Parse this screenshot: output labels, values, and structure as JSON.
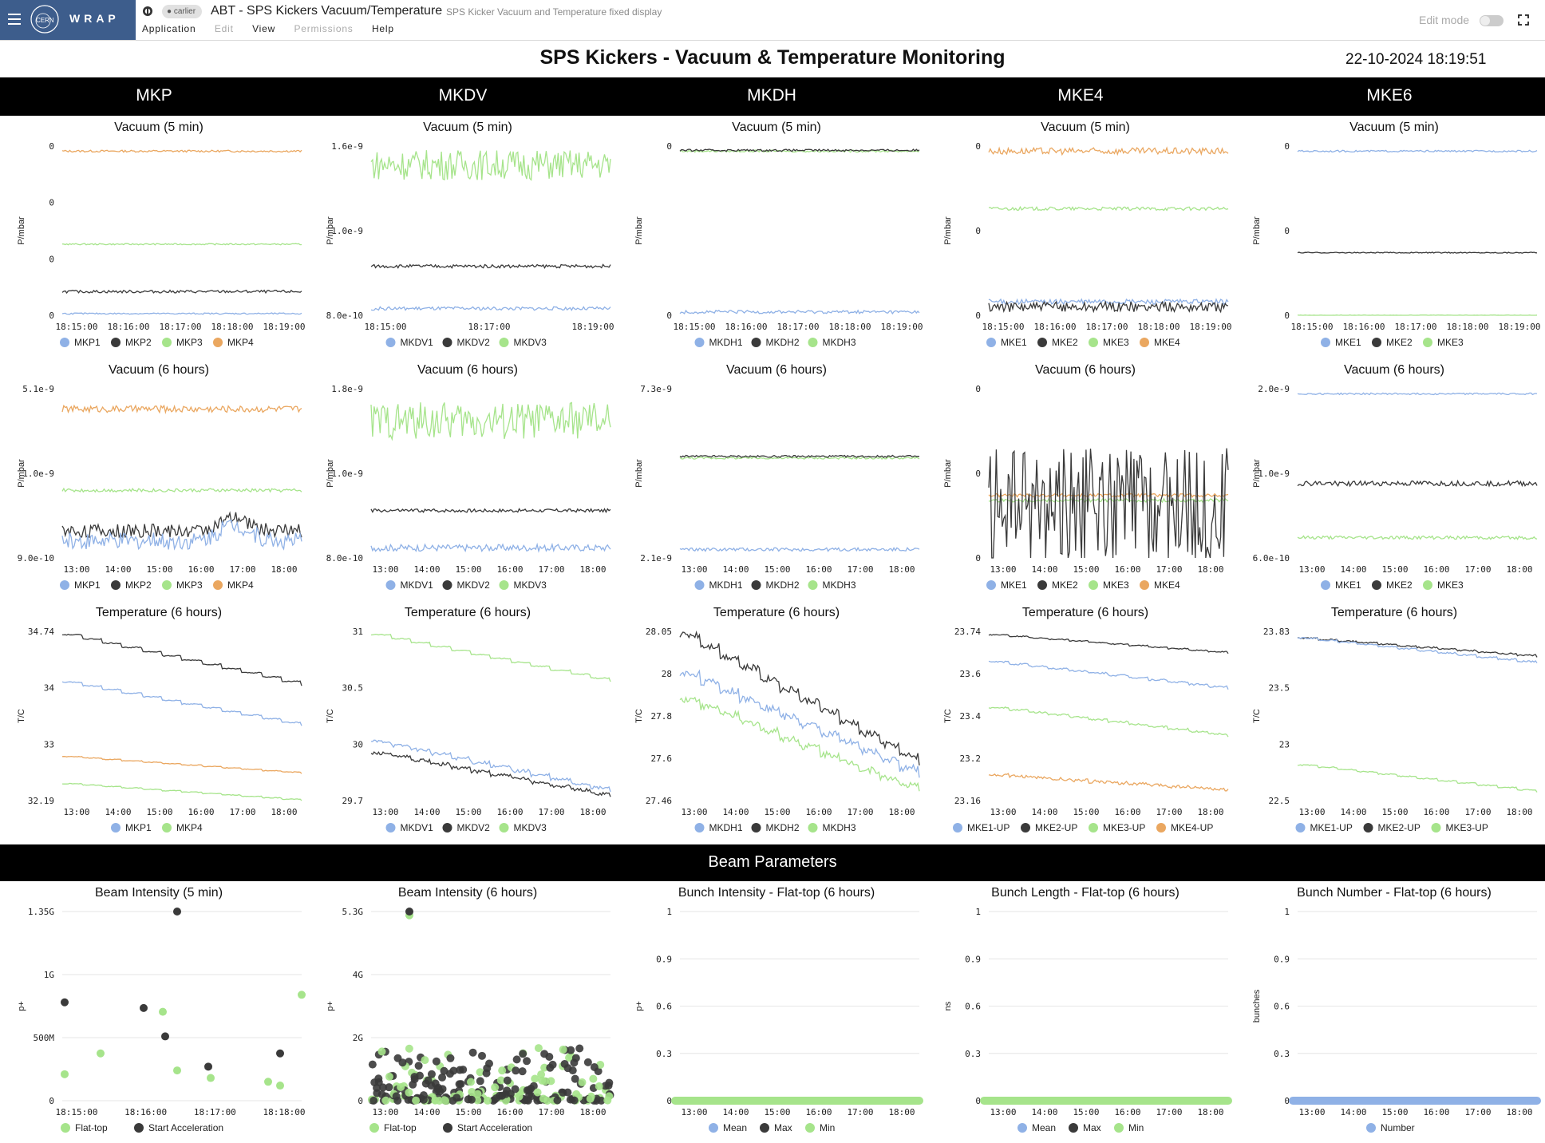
{
  "header": {
    "app_name": "WRAP",
    "user_chip": "carlier",
    "title": "ABT - SPS Kickers Vacuum/Temperature",
    "subtitle": "SPS Kicker Vacuum and Temperature fixed display",
    "menu": [
      {
        "label": "Application",
        "enabled": true
      },
      {
        "label": "Edit",
        "enabled": false
      },
      {
        "label": "View",
        "enabled": true
      },
      {
        "label": "Permissions",
        "enabled": false
      },
      {
        "label": "Help",
        "enabled": true
      }
    ],
    "edit_mode_label": "Edit mode",
    "edit_mode_on": false
  },
  "page": {
    "title": "SPS Kickers - Vacuum & Temperature Monitoring",
    "datetime": "22-10-2024 18:19:51",
    "columns": [
      "MKP",
      "MKDV",
      "MKDH",
      "MKE4",
      "MKE6"
    ],
    "beam_section_title": "Beam Parameters"
  },
  "colors": {
    "blue": "#8fb1e6",
    "black": "#3a3a3a",
    "green": "#a6e48b",
    "orange": "#eaa760"
  },
  "chart_data": [
    {
      "type": "line",
      "title": "Vacuum (5 min)",
      "ylabel": "P/mbar",
      "yticks": [
        "0",
        "0",
        "0",
        "0"
      ],
      "xticks": [
        "18:15:00",
        "18:16:00",
        "18:17:00",
        "18:18:00",
        "18:19:00"
      ],
      "legend": [
        {
          "name": "MKP1",
          "color": "blue"
        },
        {
          "name": "MKP2",
          "color": "black"
        },
        {
          "name": "MKP3",
          "color": "green"
        },
        {
          "name": "MKP4",
          "color": "orange"
        }
      ],
      "series": [
        {
          "color": "orange",
          "level": 0.97,
          "noise": 0.006
        },
        {
          "color": "green",
          "level": 0.42,
          "noise": 0.004
        },
        {
          "color": "black",
          "level": 0.14,
          "noise": 0.008
        },
        {
          "color": "blue",
          "level": 0.01,
          "noise": 0.004
        }
      ]
    },
    {
      "type": "line",
      "title": "Vacuum (5 min)",
      "ylabel": "P/mbar",
      "yticks": [
        "1.6e-9",
        "1.0e-9",
        "8.0e-10"
      ],
      "xticks": [
        "18:15:00",
        "18:17:00",
        "18:19:00"
      ],
      "legend": [
        {
          "name": "MKDV1",
          "color": "blue"
        },
        {
          "name": "MKDV2",
          "color": "black"
        },
        {
          "name": "MKDV3",
          "color": "green"
        }
      ],
      "series": [
        {
          "color": "green",
          "level": 0.89,
          "noise": 0.09
        },
        {
          "color": "black",
          "level": 0.29,
          "noise": 0.01
        },
        {
          "color": "blue",
          "level": 0.04,
          "noise": 0.01
        }
      ]
    },
    {
      "type": "line",
      "title": "Vacuum (5 min)",
      "ylabel": "P/mbar",
      "yticks": [
        "0",
        "0"
      ],
      "xticks": [
        "18:15:00",
        "18:16:00",
        "18:17:00",
        "18:18:00",
        "18:19:00"
      ],
      "legend": [
        {
          "name": "MKDH1",
          "color": "blue"
        },
        {
          "name": "MKDH2",
          "color": "black"
        },
        {
          "name": "MKDH3",
          "color": "green"
        }
      ],
      "series": [
        {
          "color": "green",
          "level": 0.97,
          "noise": 0.006
        },
        {
          "color": "black",
          "level": 0.975,
          "noise": 0.006
        },
        {
          "color": "blue",
          "level": 0.02,
          "noise": 0.01
        }
      ]
    },
    {
      "type": "line",
      "title": "Vacuum (5 min)",
      "ylabel": "P/mbar",
      "yticks": [
        "0",
        "0",
        "0"
      ],
      "xticks": [
        "18:15:00",
        "18:16:00",
        "18:17:00",
        "18:18:00",
        "18:19:00"
      ],
      "legend": [
        {
          "name": "MKE1",
          "color": "blue"
        },
        {
          "name": "MKE2",
          "color": "black"
        },
        {
          "name": "MKE3",
          "color": "green"
        },
        {
          "name": "MKE4",
          "color": "orange"
        }
      ],
      "series": [
        {
          "color": "orange",
          "level": 0.97,
          "noise": 0.02
        },
        {
          "color": "green",
          "level": 0.63,
          "noise": 0.01
        },
        {
          "color": "blue",
          "level": 0.08,
          "noise": 0.015
        },
        {
          "color": "black",
          "level": 0.05,
          "noise": 0.03
        }
      ]
    },
    {
      "type": "line",
      "title": "Vacuum (5 min)",
      "ylabel": "P/mbar",
      "yticks": [
        "0",
        "0",
        "0"
      ],
      "xticks": [
        "18:15:00",
        "18:16:00",
        "18:17:00",
        "18:18:00",
        "18:19:00"
      ],
      "legend": [
        {
          "name": "MKE1",
          "color": "blue"
        },
        {
          "name": "MKE2",
          "color": "black"
        },
        {
          "name": "MKE3",
          "color": "green"
        }
      ],
      "series": [
        {
          "color": "blue",
          "level": 0.97,
          "noise": 0.005
        },
        {
          "color": "black",
          "level": 0.37,
          "noise": 0.003
        },
        {
          "color": "green",
          "level": 0.0,
          "noise": 0.002
        }
      ]
    },
    {
      "type": "line",
      "title": "Vacuum (6 hours)",
      "ylabel": "P/mbar",
      "yticks": [
        "5.1e-9",
        "1.0e-9",
        "9.0e-10"
      ],
      "xticks": [
        "13:00",
        "14:00",
        "15:00",
        "16:00",
        "17:00",
        "18:00"
      ],
      "legend": [
        {
          "name": "MKP1",
          "color": "blue"
        },
        {
          "name": "MKP2",
          "color": "black"
        },
        {
          "name": "MKP3",
          "color": "green"
        },
        {
          "name": "MKP4",
          "color": "orange"
        }
      ],
      "series": [
        {
          "color": "orange",
          "level": 0.88,
          "noise": 0.02
        },
        {
          "color": "green",
          "level": 0.4,
          "noise": 0.01
        },
        {
          "color": "black",
          "level": 0.16,
          "noise": 0.04,
          "bump": 0.6
        },
        {
          "color": "blue",
          "level": 0.1,
          "noise": 0.05,
          "bump": 0.8
        }
      ]
    },
    {
      "type": "line",
      "title": "Vacuum (6 hours)",
      "ylabel": "P/mbar",
      "yticks": [
        "1.8e-9",
        "1.0e-9",
        "8.0e-10"
      ],
      "xticks": [
        "13:00",
        "14:00",
        "15:00",
        "16:00",
        "17:00",
        "18:00"
      ],
      "legend": [
        {
          "name": "MKDV1",
          "color": "blue"
        },
        {
          "name": "MKDV2",
          "color": "black"
        },
        {
          "name": "MKDV3",
          "color": "green"
        }
      ],
      "series": [
        {
          "color": "green",
          "level": 0.81,
          "noise": 0.11
        },
        {
          "color": "black",
          "level": 0.28,
          "noise": 0.01
        },
        {
          "color": "blue",
          "level": 0.06,
          "noise": 0.02
        }
      ]
    },
    {
      "type": "line",
      "title": "Vacuum (6 hours)",
      "ylabel": "P/mbar",
      "yticks": [
        "7.3e-9",
        "2.1e-9"
      ],
      "xticks": [
        "13:00",
        "14:00",
        "15:00",
        "16:00",
        "17:00",
        "18:00"
      ],
      "legend": [
        {
          "name": "MKDH1",
          "color": "blue"
        },
        {
          "name": "MKDH2",
          "color": "black"
        },
        {
          "name": "MKDH3",
          "color": "green"
        }
      ],
      "series": [
        {
          "color": "green",
          "level": 0.59,
          "noise": 0.006
        },
        {
          "color": "black",
          "level": 0.6,
          "noise": 0.006
        },
        {
          "color": "blue",
          "level": 0.05,
          "noise": 0.01
        }
      ]
    },
    {
      "type": "line",
      "title": "Vacuum (6 hours)",
      "ylabel": "P/mbar",
      "yticks": [
        "0",
        "0",
        "0"
      ],
      "xticks": [
        "13:00",
        "14:00",
        "15:00",
        "16:00",
        "17:00",
        "18:00"
      ],
      "legend": [
        {
          "name": "MKE1",
          "color": "blue"
        },
        {
          "name": "MKE2",
          "color": "black"
        },
        {
          "name": "MKE3",
          "color": "green"
        },
        {
          "name": "MKE4",
          "color": "orange"
        }
      ],
      "series": [
        {
          "color": "orange",
          "level": 0.37,
          "noise": 0.01
        },
        {
          "color": "green",
          "level": 0.34,
          "noise": 0.01
        },
        {
          "color": "black",
          "level": 0.3,
          "noise": 0.35
        }
      ]
    },
    {
      "type": "line",
      "title": "Vacuum (6 hours)",
      "ylabel": "P/mbar",
      "yticks": [
        "2.0e-9",
        "1.0e-9",
        "6.0e-10"
      ],
      "xticks": [
        "13:00",
        "14:00",
        "15:00",
        "16:00",
        "17:00",
        "18:00"
      ],
      "legend": [
        {
          "name": "MKE1",
          "color": "blue"
        },
        {
          "name": "MKE2",
          "color": "black"
        },
        {
          "name": "MKE3",
          "color": "green"
        }
      ],
      "series": [
        {
          "color": "blue",
          "level": 0.97,
          "noise": 0.005
        },
        {
          "color": "black",
          "level": 0.44,
          "noise": 0.015
        },
        {
          "color": "green",
          "level": 0.12,
          "noise": 0.01
        }
      ]
    },
    {
      "type": "line",
      "title": "Temperature (6 hours)",
      "ylabel": "T/C",
      "yticks": [
        "34.74",
        "34",
        "33",
        "32.19"
      ],
      "xticks": [
        "13:00",
        "14:00",
        "15:00",
        "16:00",
        "17:00",
        "18:00"
      ],
      "legend": [
        {
          "name": "MKP1",
          "color": "blue"
        },
        {
          "name": "MKP4",
          "color": "green"
        }
      ],
      "series": [
        {
          "color": "black",
          "from": 0.98,
          "to": 0.68,
          "noise": 0.003
        },
        {
          "color": "blue",
          "from": 0.7,
          "to": 0.44,
          "noise": 0.003
        },
        {
          "color": "orange",
          "from": 0.26,
          "to": 0.16,
          "noise": 0.002
        },
        {
          "color": "green",
          "from": 0.1,
          "to": 0.0,
          "noise": 0.002
        }
      ]
    },
    {
      "type": "line",
      "title": "Temperature (6 hours)",
      "ylabel": "T/C",
      "yticks": [
        "31",
        "30.5",
        "30",
        "29.7"
      ],
      "xticks": [
        "13:00",
        "14:00",
        "15:00",
        "16:00",
        "17:00",
        "18:00"
      ],
      "legend": [
        {
          "name": "MKDV1",
          "color": "blue"
        },
        {
          "name": "MKDV2",
          "color": "black"
        },
        {
          "name": "MKDV3",
          "color": "green"
        }
      ],
      "series": [
        {
          "color": "green",
          "from": 0.98,
          "to": 0.7,
          "noise": 0.003
        },
        {
          "color": "blue",
          "from": 0.35,
          "to": 0.05,
          "noise": 0.01
        },
        {
          "color": "black",
          "from": 0.28,
          "to": 0.02,
          "noise": 0.01
        }
      ]
    },
    {
      "type": "line",
      "title": "Temperature (6 hours)",
      "ylabel": "T/C",
      "yticks": [
        "28.05",
        "28",
        "27.8",
        "27.6",
        "27.46"
      ],
      "xticks": [
        "13:00",
        "14:00",
        "15:00",
        "16:00",
        "17:00",
        "18:00"
      ],
      "legend": [
        {
          "name": "MKDH1",
          "color": "blue"
        },
        {
          "name": "MKDH2",
          "color": "black"
        },
        {
          "name": "MKDH3",
          "color": "green"
        }
      ],
      "series": [
        {
          "color": "black",
          "from": 0.98,
          "to": 0.2,
          "noise": 0.02
        },
        {
          "color": "blue",
          "from": 0.75,
          "to": 0.14,
          "noise": 0.02
        },
        {
          "color": "green",
          "from": 0.6,
          "to": 0.04,
          "noise": 0.02
        }
      ]
    },
    {
      "type": "line",
      "title": "Temperature (6 hours)",
      "ylabel": "T/C",
      "yticks": [
        "23.74",
        "23.6",
        "23.4",
        "23.2",
        "23.16"
      ],
      "xticks": [
        "13:00",
        "14:00",
        "15:00",
        "16:00",
        "17:00",
        "18:00"
      ],
      "legend": [
        {
          "name": "MKE1-UP",
          "color": "blue"
        },
        {
          "name": "MKE2-UP",
          "color": "black"
        },
        {
          "name": "MKE3-UP",
          "color": "green"
        },
        {
          "name": "MKE4-UP",
          "color": "orange"
        }
      ],
      "series": [
        {
          "color": "black",
          "from": 0.98,
          "to": 0.87,
          "noise": 0.003
        },
        {
          "color": "blue",
          "from": 0.82,
          "to": 0.66,
          "noise": 0.005
        },
        {
          "color": "green",
          "from": 0.55,
          "to": 0.38,
          "noise": 0.005
        },
        {
          "color": "orange",
          "from": 0.15,
          "to": 0.06,
          "noise": 0.01
        }
      ]
    },
    {
      "type": "line",
      "title": "Temperature (6 hours)",
      "ylabel": "T/C",
      "yticks": [
        "23.83",
        "23.5",
        "23",
        "22.5"
      ],
      "xticks": [
        "13:00",
        "14:00",
        "15:00",
        "16:00",
        "17:00",
        "18:00"
      ],
      "legend": [
        {
          "name": "MKE1-UP",
          "color": "blue"
        },
        {
          "name": "MKE2-UP",
          "color": "black"
        },
        {
          "name": "MKE3-UP",
          "color": "green"
        }
      ],
      "series": [
        {
          "color": "black",
          "from": 0.96,
          "to": 0.85,
          "noise": 0.004
        },
        {
          "color": "blue",
          "from": 0.96,
          "to": 0.81,
          "noise": 0.004
        },
        {
          "color": "green",
          "from": 0.21,
          "to": 0.05,
          "noise": 0.003
        }
      ]
    },
    {
      "type": "scatter",
      "title": "Beam Intensity (5 min)",
      "ylabel": "p+",
      "yticks": [
        "1.35G",
        "1G",
        "500M",
        "0"
      ],
      "xticks": [
        "18:15:00",
        "18:16:00",
        "18:17:00",
        "18:18:00"
      ],
      "legend": [
        {
          "name": "Flat-top",
          "color": "green"
        },
        {
          "name": "Start Acceleration",
          "color": "black"
        }
      ],
      "points": [
        [
          0.01,
          0.14,
          "green"
        ],
        [
          0.16,
          0.25,
          "green"
        ],
        [
          0.42,
          0.47,
          "green"
        ],
        [
          0.48,
          0.16,
          "green"
        ],
        [
          0.62,
          0.12,
          "green"
        ],
        [
          0.86,
          0.1,
          "green"
        ],
        [
          0.91,
          0.08,
          "green"
        ],
        [
          1.0,
          0.56,
          "green"
        ],
        [
          0.01,
          0.52,
          "black"
        ],
        [
          0.34,
          0.49,
          "black"
        ],
        [
          0.43,
          0.34,
          "black"
        ],
        [
          0.48,
          1.0,
          "black"
        ],
        [
          0.61,
          0.18,
          "black"
        ],
        [
          0.91,
          0.25,
          "black"
        ]
      ]
    },
    {
      "type": "scatter",
      "title": "Beam Intensity (6 hours)",
      "ylabel": "p+",
      "yticks": [
        "5.3G",
        "4G",
        "2G",
        "0"
      ],
      "xticks": [
        "13:00",
        "14:00",
        "15:00",
        "16:00",
        "17:00",
        "18:00"
      ],
      "legend": [
        {
          "name": "Flat-top",
          "color": "green"
        },
        {
          "name": "Start Acceleration",
          "color": "black"
        }
      ],
      "cloud": true
    },
    {
      "type": "scatter",
      "title": "Bunch Intensity - Flat-top  (6 hours)",
      "ylabel": "p+",
      "yticks": [
        "1",
        "0.9",
        "0.6",
        "0.3",
        "0"
      ],
      "xticks": [
        "13:00",
        "14:00",
        "15:00",
        "16:00",
        "17:00",
        "18:00"
      ],
      "legend": [
        {
          "name": "Mean",
          "color": "blue"
        },
        {
          "name": "Max",
          "color": "black"
        },
        {
          "name": "Min",
          "color": "green"
        }
      ],
      "flat": "green"
    },
    {
      "type": "scatter",
      "title": "Bunch Length - Flat-top  (6 hours)",
      "ylabel": "ns",
      "yticks": [
        "1",
        "0.9",
        "0.6",
        "0.3",
        "0"
      ],
      "xticks": [
        "13:00",
        "14:00",
        "15:00",
        "16:00",
        "17:00",
        "18:00"
      ],
      "legend": [
        {
          "name": "Mean",
          "color": "blue"
        },
        {
          "name": "Max",
          "color": "black"
        },
        {
          "name": "Min",
          "color": "green"
        }
      ],
      "flat": "green"
    },
    {
      "type": "scatter",
      "title": "Bunch Number - Flat-top (6 hours)",
      "ylabel": "bunches",
      "yticks": [
        "1",
        "0.9",
        "0.6",
        "0.3",
        "0"
      ],
      "xticks": [
        "13:00",
        "14:00",
        "15:00",
        "16:00",
        "17:00",
        "18:00"
      ],
      "legend": [
        {
          "name": "Number",
          "color": "blue"
        }
      ],
      "flat": "blue"
    }
  ]
}
